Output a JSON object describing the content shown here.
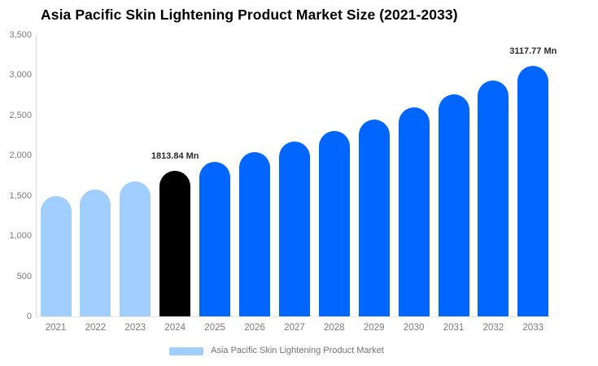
{
  "chart": {
    "title": "Asia Pacific Skin Lightening Product Market Size (2021-2033)",
    "legend_label": "Asia Pacific Skin Lightening Product Market"
  },
  "chart_data": {
    "type": "bar",
    "title": "Asia Pacific Skin Lightening Product Market Size (2021-2033)",
    "categories": [
      "2021",
      "2022",
      "2023",
      "2024",
      "2025",
      "2026",
      "2027",
      "2028",
      "2029",
      "2030",
      "2031",
      "2032",
      "2033"
    ],
    "values": [
      1495,
      1580,
      1680,
      1813.84,
      1926,
      2046,
      2173,
      2307,
      2450,
      2602,
      2763,
      2935,
      3117.77
    ],
    "unit": "Mn",
    "xlabel": "",
    "ylabel": "",
    "ylim": [
      0,
      3500
    ],
    "ytick_step": 500,
    "ytick_labels": [
      "0",
      "500",
      "1,000",
      "1,500",
      "2,000",
      "2,500",
      "3,000",
      "3,500"
    ],
    "grid": false,
    "legend_position": "bottom",
    "legend_entries": [
      "Asia Pacific Skin Lightening Product Market"
    ],
    "bar_colors": [
      "#9FCEFF",
      "#9FCEFF",
      "#9FCEFF",
      "#000000",
      "#0066FF",
      "#0066FF",
      "#0066FF",
      "#0066FF",
      "#0066FF",
      "#0066FF",
      "#0066FF",
      "#0066FF",
      "#0066FF"
    ],
    "colors": {
      "historical": "#9FCEFF",
      "base_year": "#000000",
      "forecast": "#0066FF",
      "legend_swatch": "#9FCEFF",
      "axis_text": "#7a7a7a",
      "title_text": "#000000"
    },
    "data_labels": [
      {
        "index": 3,
        "text": "1813.84 Mn"
      },
      {
        "index": 12,
        "text": "3117.77 Mn"
      }
    ]
  }
}
